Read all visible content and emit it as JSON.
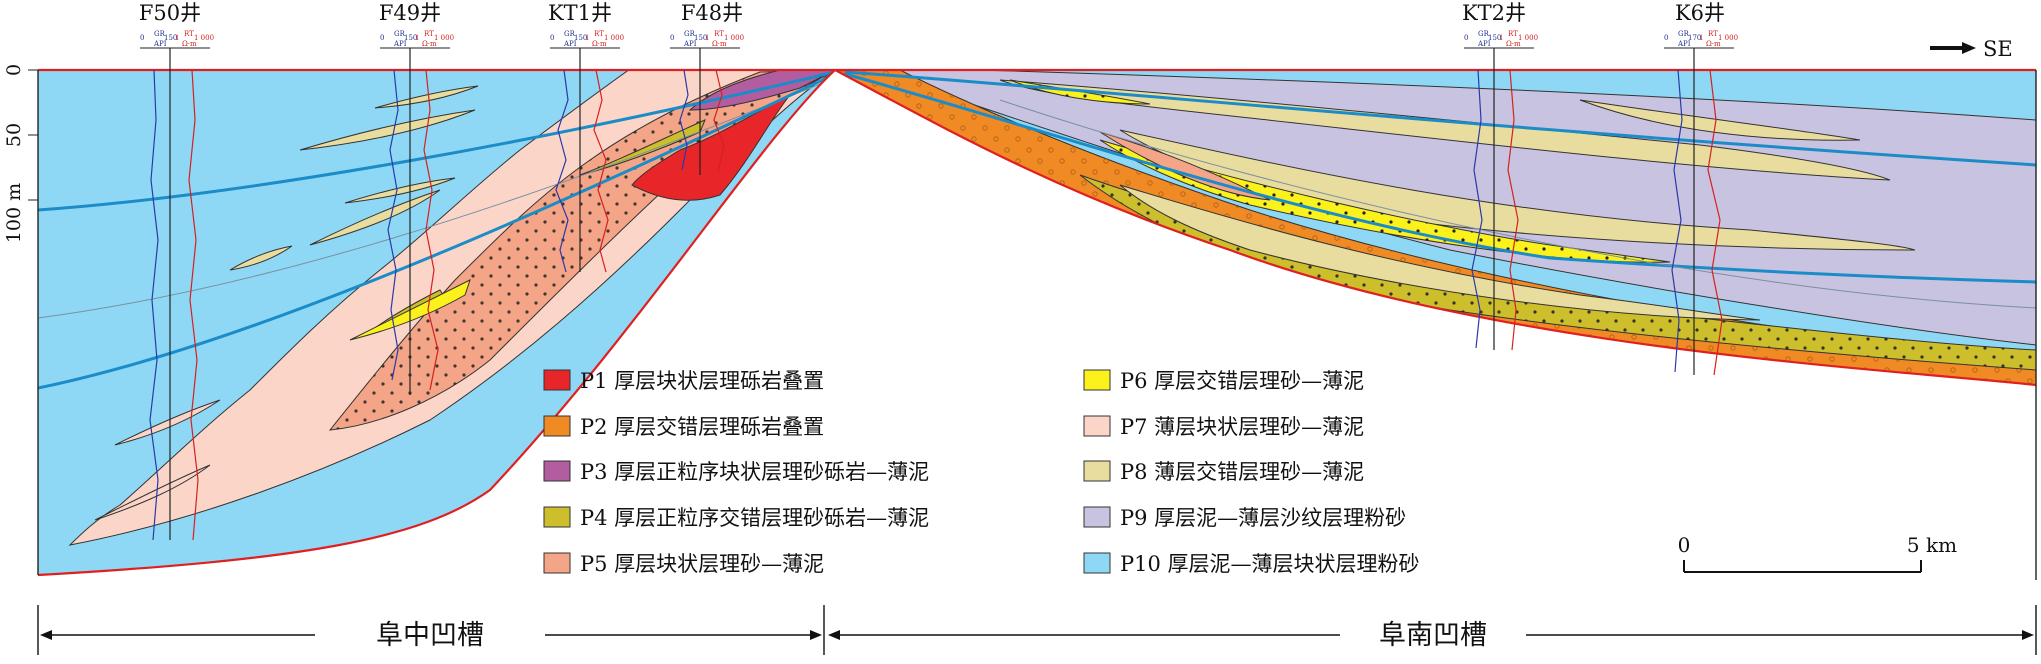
{
  "figure": {
    "depth_ticks": [
      "0",
      "50",
      "100 m"
    ],
    "direction_label": "SE",
    "scale": {
      "start": "0",
      "end": "5 km"
    },
    "basins": [
      {
        "id": "fuzhong",
        "label": "阜中凹槽"
      },
      {
        "id": "funan",
        "label": "阜南凹槽"
      }
    ]
  },
  "wells": [
    {
      "id": "F50",
      "label": "F50井",
      "gr_scale": [
        "0",
        "GR",
        "API",
        "150"
      ],
      "rt_scale": [
        "1",
        "RT",
        "Ω·m",
        "1 000"
      ]
    },
    {
      "id": "F49",
      "label": "F49井",
      "gr_scale": [
        "0",
        "GR",
        "API",
        "150"
      ],
      "rt_scale": [
        "1",
        "RT",
        "Ω·m",
        "1 000"
      ]
    },
    {
      "id": "KT1",
      "label": "KT1井",
      "gr_scale": [
        "0",
        "GR",
        "API",
        "150"
      ],
      "rt_scale": [
        "1",
        "RT",
        "Ω·m",
        "1 000"
      ]
    },
    {
      "id": "F48",
      "label": "F48井",
      "gr_scale": [
        "0",
        "GR",
        "API",
        "150"
      ],
      "rt_scale": [
        "1",
        "RT",
        "Ω·m",
        "1 000"
      ]
    },
    {
      "id": "KT2",
      "label": "KT2井",
      "gr_scale": [
        "0",
        "GR",
        "API",
        "150"
      ],
      "rt_scale": [
        "1",
        "RT",
        "Ω·m",
        "1 000"
      ]
    },
    {
      "id": "K6",
      "label": "K6井",
      "gr_scale": [
        "0",
        "GR",
        "API",
        "170"
      ],
      "rt_scale": [
        "1",
        "RT",
        "Ω·m",
        "1 000"
      ]
    }
  ],
  "legend": [
    {
      "code": "P1",
      "text": "P1 厚层块状层理砾岩叠置",
      "color": "#e8262a"
    },
    {
      "code": "P2",
      "text": "P2 厚层交错层理砾岩叠置",
      "color": "#f08a24"
    },
    {
      "code": "P3",
      "text": "P3 厚层正粒序块状层理砂砾岩—薄泥",
      "color": "#b25da0"
    },
    {
      "code": "P4",
      "text": "P4 厚层正粒序交错层理砂砾岩—薄泥",
      "color": "#cdbf2c"
    },
    {
      "code": "P5",
      "text": "P5 厚层块状层理砂—薄泥",
      "color": "#f4a487"
    },
    {
      "code": "P6",
      "text": "P6 厚层交错层理砂—薄泥",
      "color": "#fbf21c"
    },
    {
      "code": "P7",
      "text": "P7 薄层块状层理砂—薄泥",
      "color": "#fbd6c8"
    },
    {
      "code": "P8",
      "text": "P8 薄层交错层理砂—薄泥",
      "color": "#e8dc9f"
    },
    {
      "code": "P9",
      "text": "P9 厚层泥—薄层沙纹层理粉砂",
      "color": "#c8c3e0"
    },
    {
      "code": "P10",
      "text": "P10 厚层泥—薄层块状层理粉砂",
      "color": "#8fd8f5"
    }
  ]
}
